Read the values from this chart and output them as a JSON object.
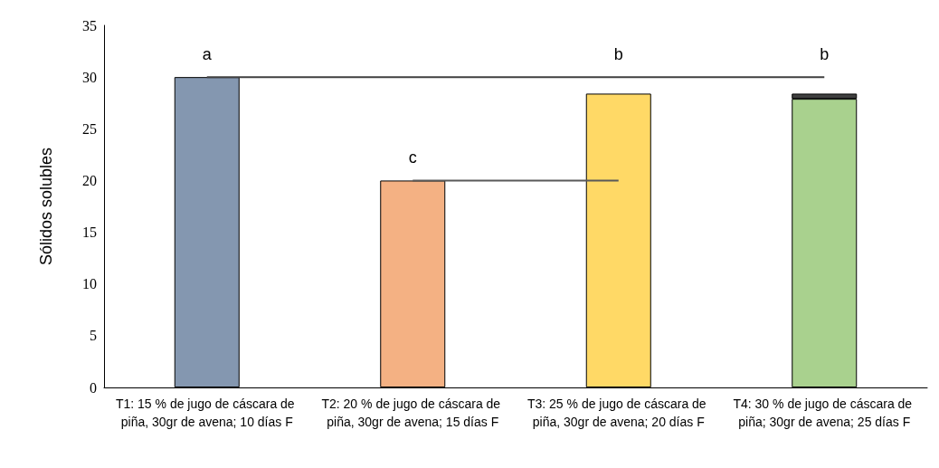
{
  "chart_data": {
    "type": "bar",
    "ylabel": "Sólidos solubles",
    "categories": [
      "T1: 15 % de jugo de cáscara de piña, 30gr de avena; 10 días F",
      "T2: 20 % de jugo de cáscara de piña, 30gr de avena; 15 días F",
      "T3: 25 % de jugo de cáscara de piña, 30gr de avena; 20 días F",
      "T4: 30 % de jugo de cáscara de piña; 30gr de avena; 25 días F"
    ],
    "stacked": true,
    "series": [
      {
        "colors": [
          "#8497b0",
          "#f4b183",
          "#ffd966",
          "#a9d18e"
        ],
        "values": [
          30,
          20,
          28.4,
          27.9
        ]
      },
      {
        "color": "#404040",
        "values": [
          null,
          null,
          null,
          0.5
        ]
      },
      {
        "type": "line",
        "color": "#404040",
        "values": [
          30,
          30,
          30,
          30
        ]
      },
      {
        "type": "line",
        "color": "#595959",
        "values": [
          null,
          20,
          20,
          null
        ]
      }
    ],
    "ylim": [
      0,
      35
    ],
    "yticks": [
      0,
      5,
      10,
      15,
      20,
      25,
      30,
      35
    ],
    "grid": false,
    "marker": "none",
    "annotations": [
      {
        "text": "a",
        "x": "T1: 15 % de jugo de cáscara de piña, 30gr de avena; 10 días F",
        "y": 30
      },
      {
        "text": "c",
        "x": "T2: 20 % de jugo de cáscara de piña, 30gr de avena; 15 días F",
        "y": 20
      },
      {
        "text": "b",
        "x": "T3: 25 % de jugo de cáscara de piña, 30gr de avena; 20 días F",
        "y": 30
      },
      {
        "text": "b",
        "x": "T4: 30 % de jugo de cáscara de piña; 30gr de avena; 25 días F",
        "y": 30
      }
    ]
  }
}
